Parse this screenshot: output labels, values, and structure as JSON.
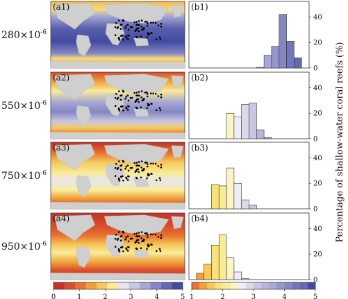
{
  "figure": {
    "ylabel": "Percentage of shallow-water coral reefs (%)"
  },
  "rows": [
    {
      "co2_base": "280",
      "co2_mult": "×10",
      "co2_exp": "-6",
      "map_label": "(a1)",
      "hist_label": "(b1)"
    },
    {
      "co2_base": "550",
      "co2_mult": "×10",
      "co2_exp": "-6",
      "map_label": "(a2)",
      "hist_label": "(b2)"
    },
    {
      "co2_base": "750",
      "co2_mult": "×10",
      "co2_exp": "-6",
      "map_label": "(a3)",
      "hist_label": "(b3)"
    },
    {
      "co2_base": "950",
      "co2_mult": "×10",
      "co2_exp": "-6",
      "map_label": "(a4)",
      "hist_label": "(b4)"
    }
  ],
  "map_colorbar": {
    "ticks": [
      "0",
      "1",
      "2",
      "3",
      "4",
      "5"
    ],
    "colors": [
      "#c43226",
      "#d94e2d",
      "#e8732f",
      "#f1a13a",
      "#f6c95a",
      "#f8ec99",
      "#e8e5ef",
      "#c9c7e3",
      "#a8a8d4",
      "#8387c3",
      "#6469b2",
      "#434aa0"
    ]
  },
  "hist_colorbar": {
    "ticks": [
      "1",
      "2",
      "3",
      "4",
      "5"
    ],
    "colors": [
      "#e8732f",
      "#f1a13a",
      "#f6c95a",
      "#f8e27a",
      "#f8ec99",
      "#fbf5c4",
      "#efeef6",
      "#dbdaea",
      "#c9c7e3",
      "#b6b5da",
      "#a8a8d4",
      "#9597cb",
      "#8387c3",
      "#7276ba",
      "#6469b2",
      "#434aa0"
    ]
  },
  "chart_data": [
    {
      "type": "bar",
      "panel": "(b1)",
      "xlim": [
        1,
        5
      ],
      "ylim": [
        0,
        50
      ],
      "yticks": [
        0,
        20,
        40
      ],
      "bin_width": 0.25,
      "bins": [
        {
          "x": 3.25,
          "v": 0.5
        },
        {
          "x": 3.5,
          "v": 10
        },
        {
          "x": 3.75,
          "v": 17
        },
        {
          "x": 4.0,
          "v": 42
        },
        {
          "x": 4.25,
          "v": 21
        },
        {
          "x": 4.5,
          "v": 8
        }
      ]
    },
    {
      "type": "bar",
      "panel": "(b2)",
      "xlim": [
        1,
        5
      ],
      "ylim": [
        0,
        50
      ],
      "yticks": [
        0,
        20,
        40
      ],
      "bin_width": 0.25,
      "bins": [
        {
          "x": 2.25,
          "v": 20
        },
        {
          "x": 2.5,
          "v": 17
        },
        {
          "x": 2.75,
          "v": 27
        },
        {
          "x": 3.0,
          "v": 28
        },
        {
          "x": 3.25,
          "v": 7
        },
        {
          "x": 3.5,
          "v": 1
        }
      ]
    },
    {
      "type": "bar",
      "panel": "(b3)",
      "xlim": [
        1,
        5
      ],
      "ylim": [
        0,
        50
      ],
      "yticks": [
        0,
        20,
        40
      ],
      "bin_width": 0.25,
      "bins": [
        {
          "x": 1.75,
          "v": 19
        },
        {
          "x": 2.0,
          "v": 18
        },
        {
          "x": 2.25,
          "v": 32
        },
        {
          "x": 2.5,
          "v": 20
        },
        {
          "x": 2.75,
          "v": 7
        },
        {
          "x": 3.0,
          "v": 3
        }
      ]
    },
    {
      "type": "bar",
      "panel": "(b4)",
      "xlim": [
        1,
        5
      ],
      "ylim": [
        0,
        50
      ],
      "yticks": [
        0,
        20,
        40
      ],
      "bin_width": 0.25,
      "bins": [
        {
          "x": 1.25,
          "v": 5
        },
        {
          "x": 1.5,
          "v": 12
        },
        {
          "x": 1.75,
          "v": 27
        },
        {
          "x": 2.0,
          "v": 35
        },
        {
          "x": 2.25,
          "v": 17
        },
        {
          "x": 2.5,
          "v": 6
        },
        {
          "x": 2.75,
          "v": 1
        }
      ]
    }
  ]
}
